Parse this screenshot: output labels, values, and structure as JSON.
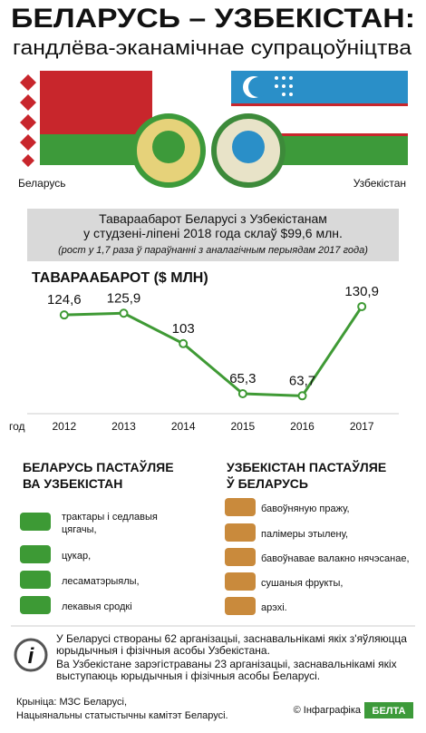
{
  "header": {
    "title": "БЕЛАРУСЬ – УЗБЕКІСТАН:",
    "subtitle": "гандлёва-эканамічнае супрацоўніцтва"
  },
  "flags": {
    "left_label": "Беларусь",
    "right_label": "Узбекістан"
  },
  "summary": {
    "lines": [
      "Тавараабарот Беларусі з Узбекістанам",
      "у студзені-ліпені 2018 года склаў $99,6 млн."
    ],
    "note": "(рост у 1,7 раза ў параўнанні з аналагічным перыядам 2017 года)"
  },
  "chart_data": {
    "type": "line",
    "title": "ТАВАРААБАРОТ ($ МЛН)",
    "x_label": "год",
    "categories": [
      "2012",
      "2013",
      "2014",
      "2015",
      "2016",
      "2017"
    ],
    "values": [
      124.6,
      125.9,
      103,
      65.3,
      63.7,
      130.9
    ],
    "value_labels": [
      "124,6",
      "125,9",
      "103",
      "65,3",
      "63,7",
      "130,9"
    ],
    "color": "#3f9a35",
    "ylim": [
      40,
      150
    ]
  },
  "exports": {
    "title": [
      "БЕЛАРУСЬ ПАСТАЎЛЯЕ",
      "ВА УЗБЕКІСТАН"
    ],
    "items": [
      [
        "трактары і седлавыя",
        "цягачы,"
      ],
      [
        "цукар,"
      ],
      [
        "лесаматэрыялы,"
      ],
      [
        "лекавыя сродкі"
      ]
    ]
  },
  "imports": {
    "title": [
      "УЗБЕКІСТАН ПАСТАЎЛЯЕ",
      "Ў БЕЛАРУСЬ"
    ],
    "items": [
      [
        "бавоўняную пражу,"
      ],
      [
        "палімеры этылену,"
      ],
      [
        "бавоўнавае валакно нячэсанае,"
      ],
      [
        "сушаныя фрукты,"
      ],
      [
        "арэхі."
      ]
    ]
  },
  "info": [
    "У Беларусі створаны 62 арганізацыі, заснавальнікамі якіх з'яўляюцца",
    "юрыдычныя і фізічныя асобы Узбекістана.",
    "Ва Узбекістане зарэгістраваны 23 арганізацыі, заснавальнікамі якіх",
    "выступаюць юрыдычныя і фізічныя асобы Беларусі."
  ],
  "footer": {
    "source": [
      "Крыніца: МЗС Беларусі,",
      "Нацыянальны статыстычны камітэт Беларусі."
    ],
    "credit": "© Інфаграфіка",
    "logo": "БЕЛТА"
  }
}
